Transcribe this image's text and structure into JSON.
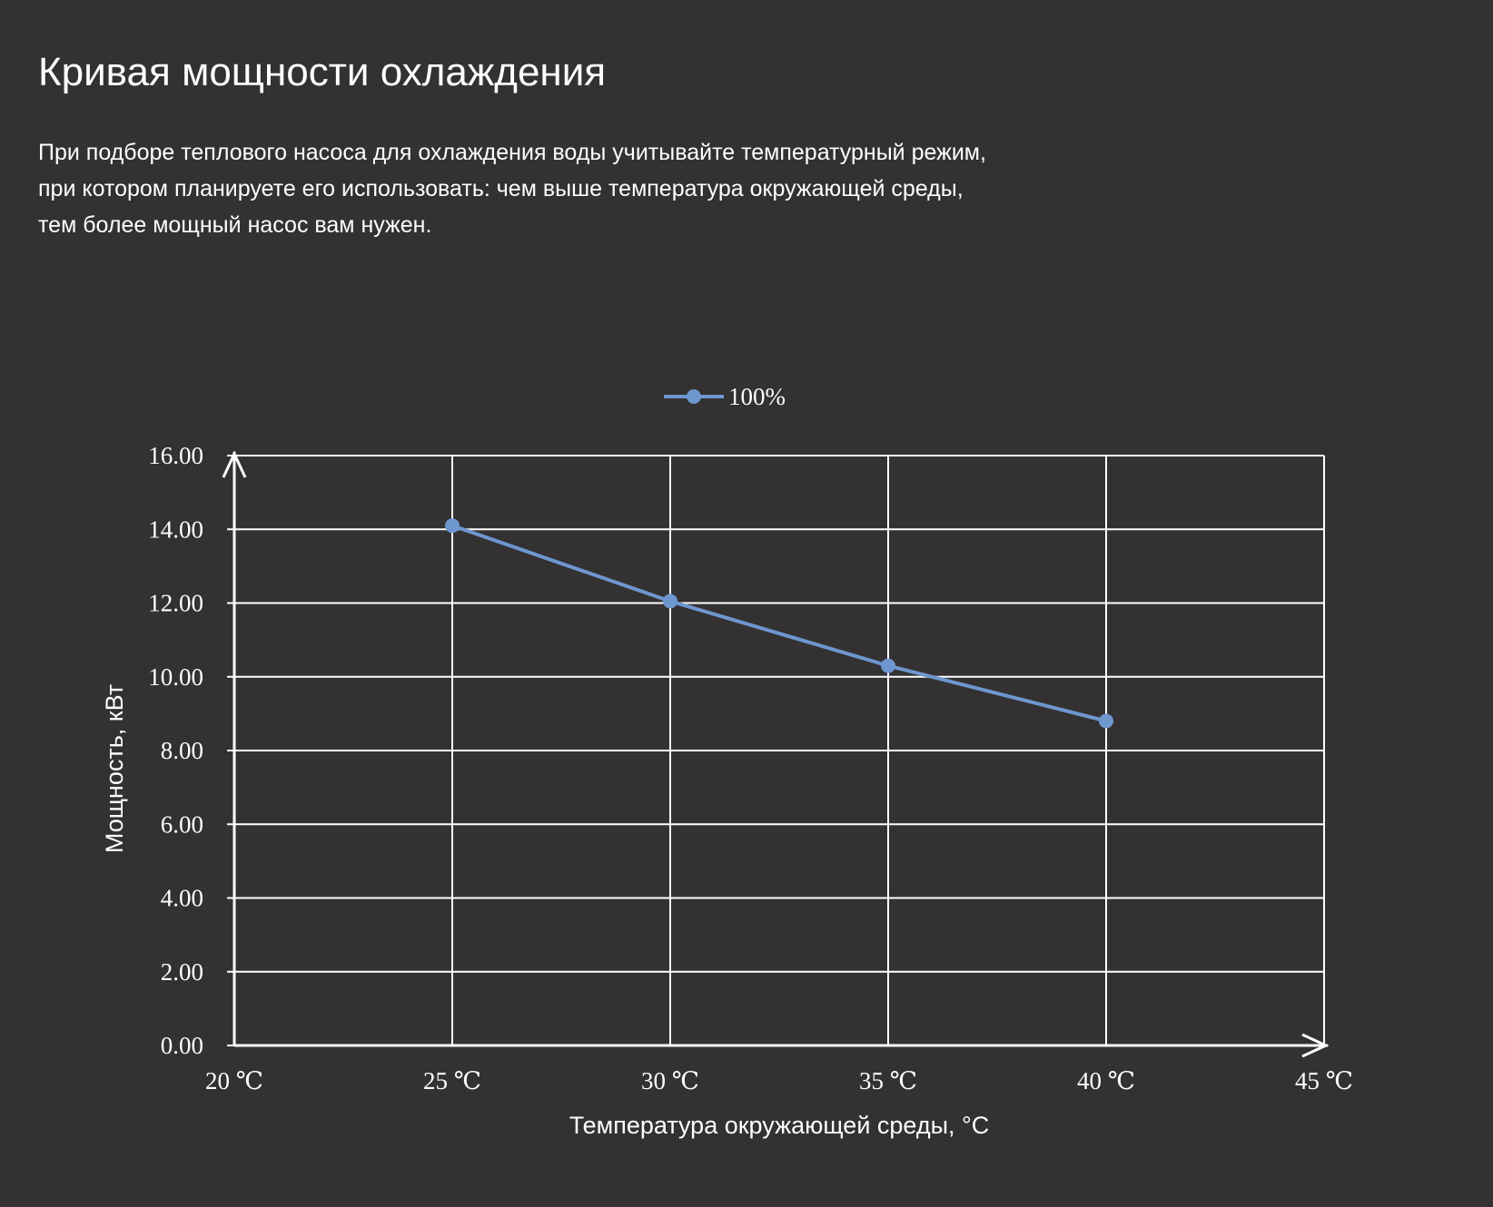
{
  "header": {
    "title": "Кривая мощности охлаждения",
    "description_lines": [
      "При подборе теплового насоса для охлаждения воды учитывайте температурный режим,",
      "при котором планируете его использовать: чем выше температура окружающей среды,",
      "тем более мощный насос вам нужен."
    ]
  },
  "colors": {
    "background": "#333132",
    "grid": "#ffffff",
    "series": "#6e96cf"
  },
  "chart_data": {
    "type": "line",
    "x": [
      20,
      25,
      30,
      35,
      40,
      45
    ],
    "x_tick_labels": [
      "20 ℃",
      "25 ℃",
      "30 ℃",
      "35 ℃",
      "40 ℃",
      "45 ℃"
    ],
    "y_tick_labels": [
      "0.00",
      "2.00",
      "4.00",
      "6.00",
      "8.00",
      "10.00",
      "12.00",
      "14.00",
      "16.00"
    ],
    "series": [
      {
        "name": "100%",
        "points": [
          {
            "x": 25,
            "y": 14.1
          },
          {
            "x": 30,
            "y": 12.05
          },
          {
            "x": 35,
            "y": 10.3
          },
          {
            "x": 40,
            "y": 8.8
          }
        ]
      }
    ],
    "xlabel": "Температура окружающей среды, °C",
    "ylabel": "Мощность, кВт",
    "xlim": [
      20,
      45
    ],
    "ylim": [
      0,
      16
    ],
    "y_step": 2,
    "grid": true,
    "legend_position": "top-center"
  }
}
